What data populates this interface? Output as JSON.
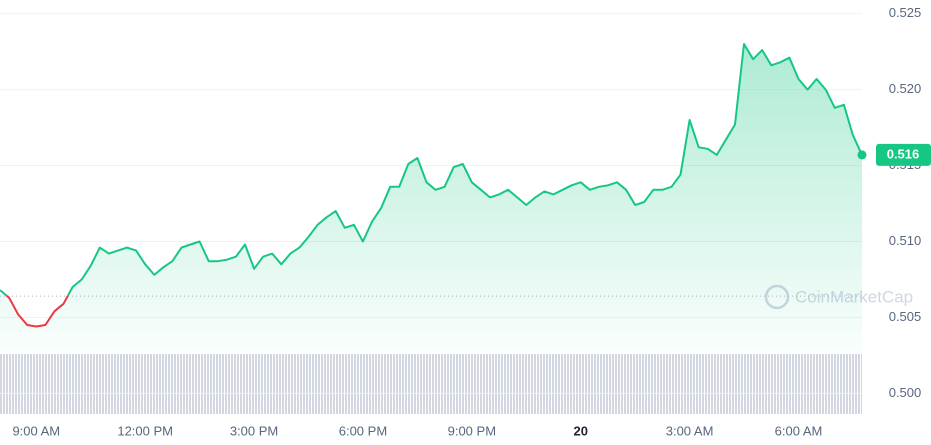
{
  "chart_data": {
    "type": "line",
    "categories": [
      null,
      null,
      null,
      null,
      "9:00 AM",
      null,
      null,
      null,
      null,
      null,
      null,
      null,
      null,
      null,
      null,
      null,
      "12:00 PM",
      null,
      null,
      null,
      null,
      null,
      null,
      null,
      null,
      null,
      null,
      null,
      "3:00 PM",
      null,
      null,
      null,
      null,
      null,
      null,
      null,
      null,
      null,
      null,
      null,
      "6:00 PM",
      null,
      null,
      null,
      null,
      null,
      null,
      null,
      null,
      null,
      null,
      null,
      "9:00 PM",
      null,
      null,
      null,
      null,
      null,
      null,
      null,
      null,
      null,
      null,
      null,
      "20",
      null,
      null,
      null,
      null,
      null,
      null,
      null,
      null,
      null,
      null,
      null,
      "3:00 AM",
      null,
      null,
      null,
      null,
      null,
      null,
      null,
      null,
      null,
      null,
      null,
      "6:00 AM",
      null,
      null,
      null,
      null,
      null,
      null,
      null
    ],
    "values": [
      0.5068,
      0.5063,
      0.5052,
      0.5045,
      0.5044,
      0.5045,
      0.5054,
      0.5059,
      0.507,
      0.5075,
      0.5084,
      0.5096,
      0.5092,
      0.5094,
      0.5096,
      0.5094,
      0.5085,
      0.5078,
      0.5083,
      0.5087,
      0.5096,
      0.5098,
      0.51,
      0.5087,
      0.5087,
      0.5088,
      0.509,
      0.5098,
      0.5082,
      0.509,
      0.5092,
      0.5085,
      0.5092,
      0.5096,
      0.5103,
      0.5111,
      0.5116,
      0.512,
      0.5109,
      0.5111,
      0.51,
      0.5113,
      0.5122,
      0.5136,
      0.5136,
      0.5151,
      0.5155,
      0.5139,
      0.5134,
      0.5136,
      0.5149,
      0.5151,
      0.5139,
      0.5134,
      0.5129,
      0.5131,
      0.5134,
      0.5129,
      0.5124,
      0.5129,
      0.5133,
      0.5131,
      0.5134,
      0.5137,
      0.5139,
      0.5134,
      0.5136,
      0.5137,
      0.5139,
      0.5134,
      0.5124,
      0.5126,
      0.5134,
      0.5134,
      0.5136,
      0.5144,
      0.518,
      0.5162,
      0.5161,
      0.5157,
      0.5167,
      0.5177,
      0.523,
      0.522,
      0.5226,
      0.5216,
      0.5218,
      0.5221,
      0.5207,
      0.52,
      0.5207,
      0.52,
      0.5188,
      0.519,
      0.517,
      0.5157
    ],
    "reference_line": 0.5064,
    "up_color": "#16c784",
    "down_color": "#ea3943",
    "ylim": [
      0.4966,
      0.5259
    ],
    "yticks": [
      {
        "value": 0.5,
        "label": "0.500"
      },
      0.505,
      {
        "value": 0.51,
        "label": "0.510"
      },
      0.515,
      {
        "value": 0.52,
        "label": "0.520"
      },
      0.525
    ],
    "grid": true,
    "current_price_label": "0.516",
    "watermark": "CoinMarketCap"
  }
}
